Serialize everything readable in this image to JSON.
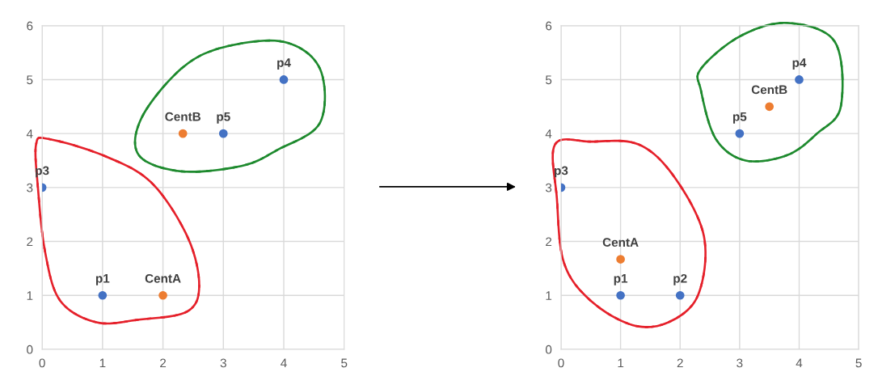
{
  "chart_data": [
    {
      "type": "scatter",
      "xlim": [
        0,
        5
      ],
      "ylim": [
        0,
        6
      ],
      "xticks": [
        0,
        1,
        2,
        3,
        4,
        5
      ],
      "yticks": [
        0,
        1,
        2,
        3,
        4,
        5,
        6
      ],
      "grid": true,
      "marker": "circle",
      "series": [
        {
          "color": "#4472c4",
          "x": [
            1,
            0,
            4,
            3
          ],
          "values": [
            1,
            3,
            5,
            4
          ]
        },
        {
          "color": "#ed7d31",
          "x": [
            2,
            2.33
          ],
          "values": [
            1,
            4
          ]
        }
      ],
      "annotations": [
        {
          "text": "p1",
          "x": 1,
          "y": 1
        },
        {
          "text": "p3",
          "x": 0,
          "y": 3
        },
        {
          "text": "p4",
          "x": 4,
          "y": 5
        },
        {
          "text": "p5",
          "x": 3,
          "y": 4
        },
        {
          "text": "CentA",
          "x": 2,
          "y": 1
        },
        {
          "text": "CentB",
          "x": 2.33,
          "y": 4
        }
      ]
    },
    {
      "type": "scatter",
      "xlim": [
        0,
        5
      ],
      "ylim": [
        0,
        6
      ],
      "xticks": [
        0,
        1,
        2,
        3,
        4,
        5
      ],
      "yticks": [
        0,
        1,
        2,
        3,
        4,
        5,
        6
      ],
      "grid": true,
      "marker": "circle",
      "series": [
        {
          "color": "#4472c4",
          "x": [
            1,
            2,
            0,
            4,
            3
          ],
          "values": [
            1,
            1,
            3,
            5,
            4
          ]
        },
        {
          "color": "#ed7d31",
          "x": [
            1,
            3.5
          ],
          "values": [
            1.67,
            4.5
          ]
        }
      ],
      "annotations": [
        {
          "text": "p1",
          "x": 1,
          "y": 1
        },
        {
          "text": "p2",
          "x": 2,
          "y": 1
        },
        {
          "text": "p3",
          "x": 0,
          "y": 3
        },
        {
          "text": "p4",
          "x": 4,
          "y": 5
        },
        {
          "text": "p5",
          "x": 3,
          "y": 4
        },
        {
          "text": "CentA",
          "x": 1,
          "y": 1.67
        },
        {
          "text": "CentB",
          "x": 3.5,
          "y": 4.5
        }
      ]
    }
  ]
}
